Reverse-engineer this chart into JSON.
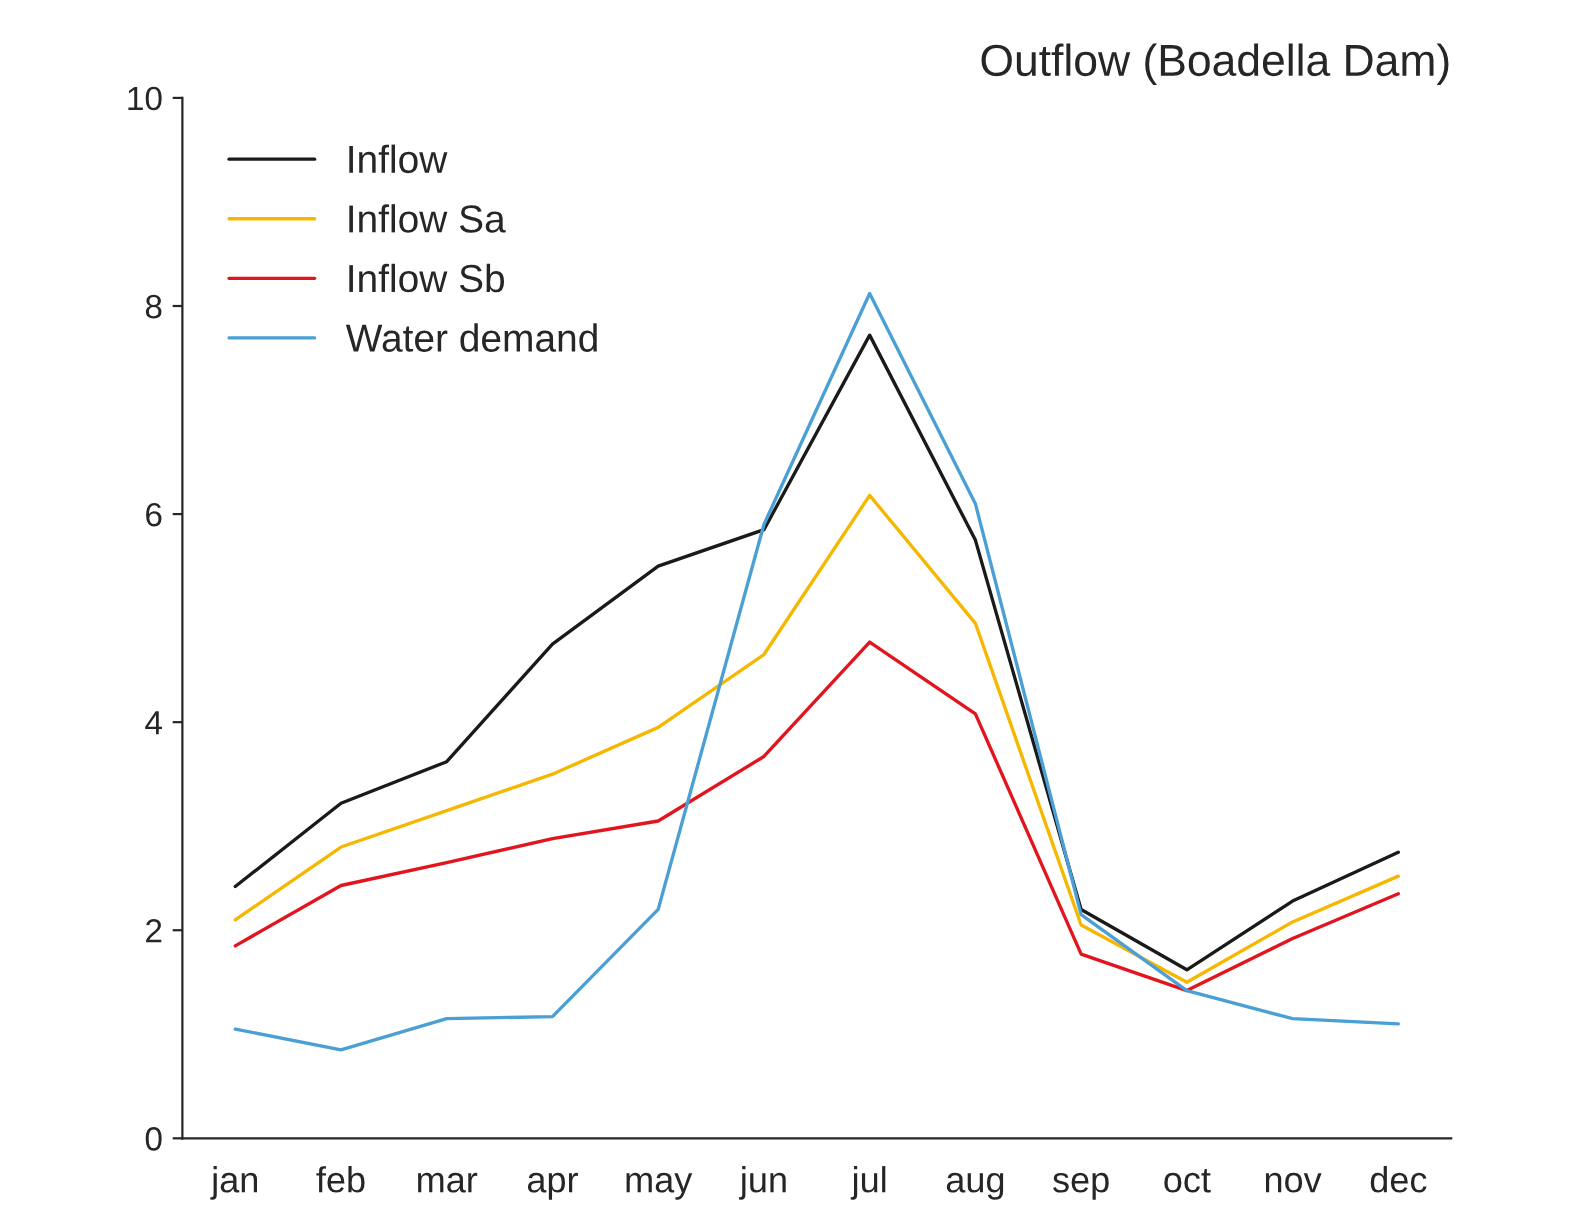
{
  "chart_data": {
    "type": "line",
    "title": "Outflow (Boadella Dam)",
    "categories": [
      "jan",
      "feb",
      "mar",
      "apr",
      "may",
      "jun",
      "jul",
      "aug",
      "sep",
      "oct",
      "nov",
      "dec"
    ],
    "series": [
      {
        "name": "Inflow",
        "color": "#1a1a1a",
        "values": [
          2.42,
          3.22,
          3.62,
          4.75,
          5.5,
          5.85,
          7.72,
          5.75,
          2.2,
          1.62,
          2.28,
          2.75
        ]
      },
      {
        "name": "Inflow Sa",
        "color": "#f5b700",
        "values": [
          2.1,
          2.8,
          3.15,
          3.5,
          3.95,
          4.65,
          6.18,
          4.95,
          2.05,
          1.5,
          2.08,
          2.52
        ]
      },
      {
        "name": "Inflow Sb",
        "color": "#e2141e",
        "values": [
          1.85,
          2.43,
          2.65,
          2.88,
          3.05,
          3.67,
          4.77,
          4.08,
          1.77,
          1.42,
          1.92,
          2.35
        ]
      },
      {
        "name": "Water demand",
        "color": "#4a9fd4",
        "values": [
          1.05,
          0.85,
          1.15,
          1.17,
          2.2,
          5.9,
          8.12,
          6.1,
          2.15,
          1.42,
          1.15,
          1.1
        ]
      }
    ],
    "ylim": [
      0,
      10
    ],
    "yticks": [
      0,
      2,
      4,
      6,
      8,
      10
    ],
    "grid": false,
    "legend": "top left",
    "marker": "none",
    "line_style": "solid"
  }
}
